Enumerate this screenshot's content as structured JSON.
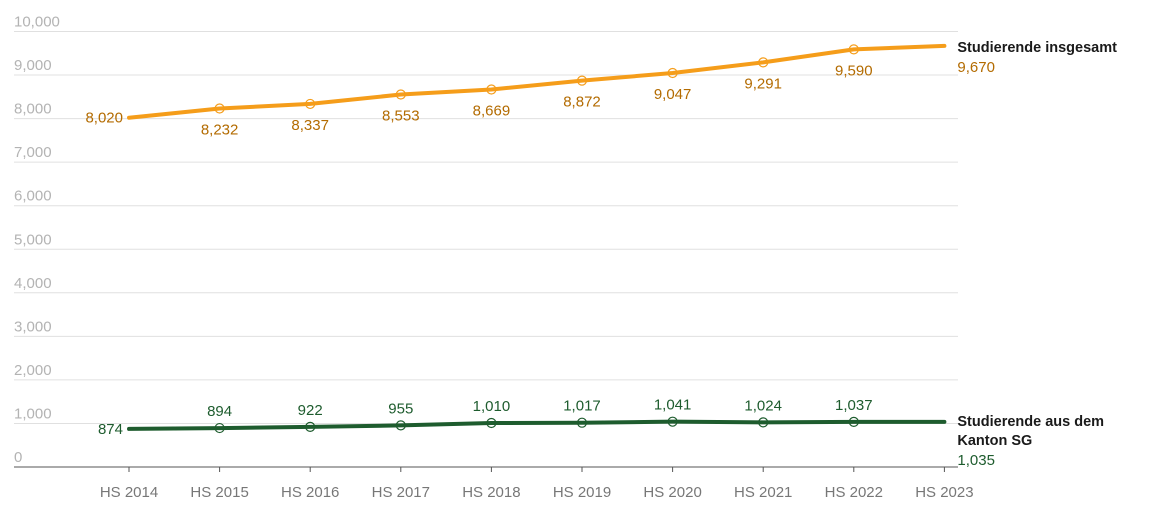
{
  "chart_data": {
    "type": "line",
    "title": "",
    "xlabel": "",
    "ylabel": "",
    "ylim": [
      0,
      10000
    ],
    "yticks": [
      "0",
      "1,000",
      "2,000",
      "3,000",
      "4,000",
      "5,000",
      "6,000",
      "7,000",
      "8,000",
      "9,000",
      "10,000"
    ],
    "ytick_values": [
      0,
      1000,
      2000,
      3000,
      4000,
      5000,
      6000,
      7000,
      8000,
      9000,
      10000
    ],
    "categories": [
      "HS 2014",
      "HS 2015",
      "HS 2016",
      "HS 2017",
      "HS 2018",
      "HS 2019",
      "HS 2020",
      "HS 2021",
      "HS 2022",
      "HS 2023"
    ],
    "grid": true,
    "series": [
      {
        "name": "Studierende insgesamt",
        "color": "#f59d1a",
        "label_color": "#b36b00",
        "values": [
          8020,
          8232,
          8337,
          8553,
          8669,
          8872,
          9047,
          9291,
          9590,
          9670
        ],
        "labels": [
          "8,020",
          "8,232",
          "8,337",
          "8,553",
          "8,669",
          "8,872",
          "9,047",
          "9,291",
          "9,590",
          "9,670"
        ],
        "name_lines": [
          "Studierende insgesamt"
        ]
      },
      {
        "name": "Studierende aus dem Kanton SG",
        "color": "#1e5c2e",
        "label_color": "#1e5c2e",
        "values": [
          874,
          894,
          922,
          955,
          1010,
          1017,
          1041,
          1024,
          1037,
          1035
        ],
        "labels": [
          "874",
          "894",
          "922",
          "955",
          "1,010",
          "1,017",
          "1,041",
          "1,024",
          "1,037",
          "1,035"
        ],
        "name_lines": [
          "Studierende aus dem",
          "Kanton SG"
        ]
      }
    ]
  }
}
